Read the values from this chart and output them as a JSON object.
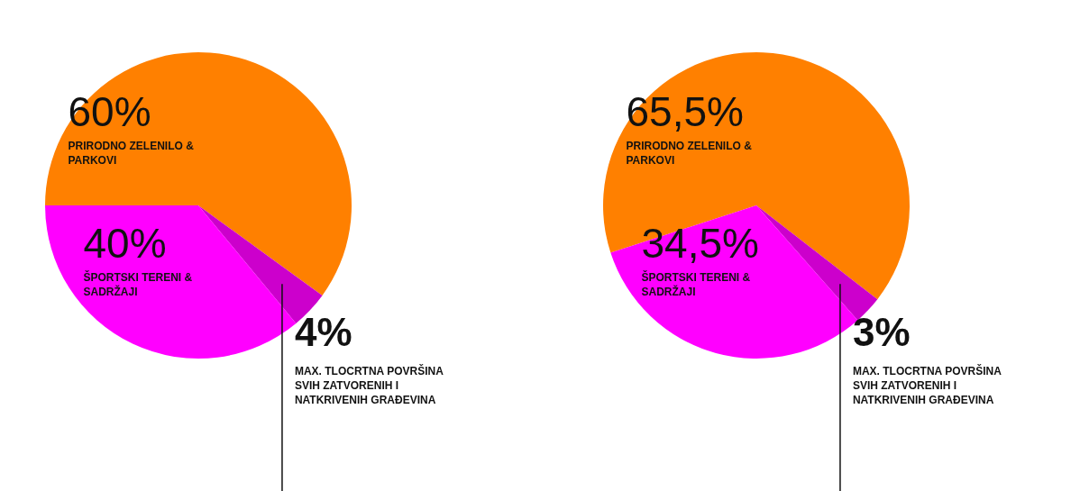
{
  "chart_data": [
    {
      "type": "pie",
      "categories": [
        "PRIRODNO ZELENILO & PARKOVI",
        "MAX. TLOCRTNA POVRŠINA SVIH ZATVORENIH I NATKRIVENIH GRAĐEVINA",
        "ŠPORTSKI TERENI & SADRŽAJI"
      ],
      "values": [
        60,
        4,
        36
      ],
      "colors": [
        "#ff8000",
        "#cc00cc",
        "#ff00ff"
      ],
      "value_labels": [
        "60%",
        "4%",
        null
      ],
      "annotations": [
        {
          "text": "40%"
        }
      ]
    },
    {
      "type": "pie",
      "categories": [
        "PRIRODNO ZELENILO & PARKOVI",
        "MAX. TLOCRTNA POVRŠINA SVIH ZATVORENIH I NATKRIVENIH GRAĐEVINA",
        "ŠPORTSKI TERENI & SADRŽAJI"
      ],
      "values": [
        65.5,
        3,
        31.5
      ],
      "colors": [
        "#ff8000",
        "#cc00cc",
        "#ff00ff"
      ],
      "value_labels": [
        "65,5%",
        "3%",
        null
      ],
      "annotations": [
        {
          "text": "34,5%"
        }
      ]
    }
  ]
}
